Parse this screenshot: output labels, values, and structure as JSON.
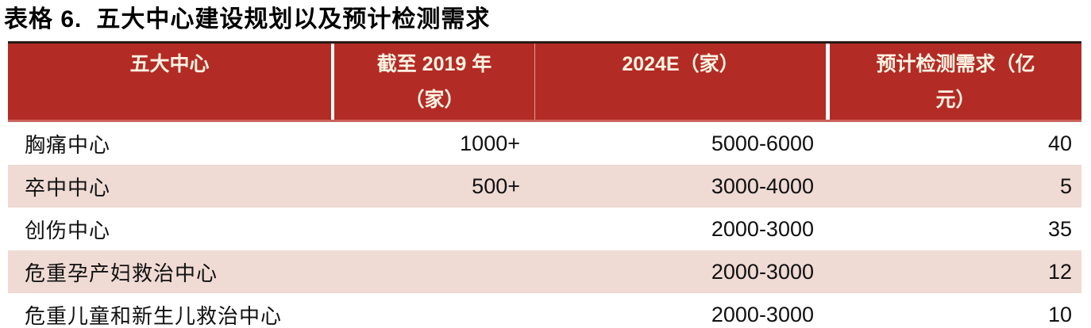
{
  "title": {
    "prefix": "表格 6.",
    "text": "五大中心建设规划以及预计检测需求"
  },
  "table": {
    "columns": [
      {
        "id": "center",
        "line1": "五大中心",
        "line2": ""
      },
      {
        "id": "as_of_2019",
        "line1": "截至 2019 年",
        "line2": "（家）"
      },
      {
        "id": "e2024",
        "line1": "2024E（家）",
        "line2": ""
      },
      {
        "id": "demand",
        "line1": "预计检测需求（亿",
        "line2": "元）"
      }
    ],
    "rows": [
      {
        "center": "胸痛中心",
        "as_of_2019": "1000+",
        "e2024": "5000-6000",
        "demand": "40"
      },
      {
        "center": "卒中中心",
        "as_of_2019": "500+",
        "e2024": "3000-4000",
        "demand": "5"
      },
      {
        "center": "创伤中心",
        "as_of_2019": "",
        "e2024": "2000-3000",
        "demand": "35"
      },
      {
        "center": "危重孕产妇救治中心",
        "as_of_2019": "",
        "e2024": "2000-3000",
        "demand": "12"
      },
      {
        "center": "危重儿童和新生儿救治中心",
        "as_of_2019": "",
        "e2024": "2000-3000",
        "demand": "10"
      }
    ],
    "colors": {
      "header_bg": "#B32B25",
      "header_text": "#FDF4E3",
      "row_bg": "#FFFFFF",
      "row_alt_bg": "#EFDAD4",
      "top_rule": "#2A1B17",
      "under_rule": "#C9625C",
      "body_text": "#111111"
    }
  }
}
